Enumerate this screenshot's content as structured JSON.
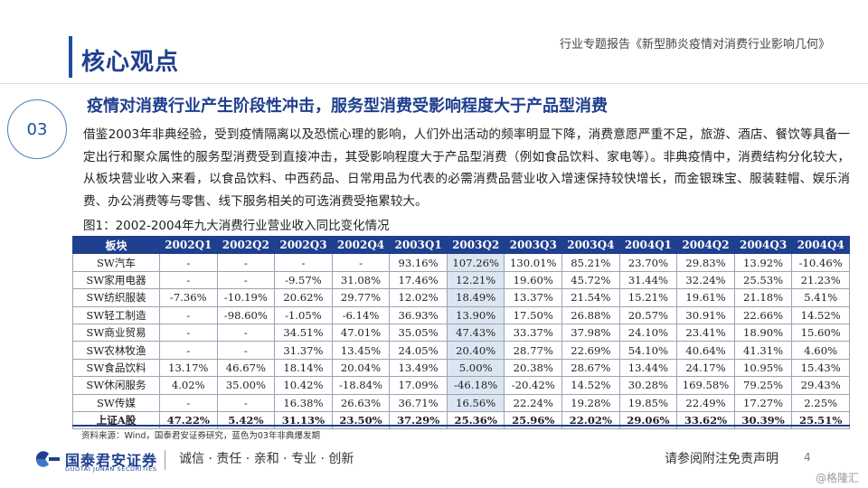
{
  "header": {
    "page_title": "核心观点",
    "report_title": "行业专题报告《新型肺炎疫情对消费行业影响几何》"
  },
  "section": {
    "number": "03",
    "heading": "疫情对消费行业产生阶段性冲击，服务型消费受影响程度大于产品型消费",
    "paragraph": "借鉴2003年非典经验，受到疫情隔离以及恐慌心理的影响，人们外出活动的频率明显下降，消费意愿严重不足，旅游、酒店、餐饮等具备一定出行和聚众属性的服务型消费受到直接冲击，其受影响程度大于产品型消费（例如食品饮料、家电等）。非典疫情中，消费结构分化较大，从板块营业收入来看，以食品饮料、中西药品、日常用品为代表的必需消费品营业收入增速保持较快增长，而金银珠宝、服装鞋帽、娱乐消费、办公消费等与零售、线下服务相关的可选消费受拖累较大。",
    "figure_caption": "图1：2002-2004年九大消费行业营业收入同比变化情况"
  },
  "table": {
    "headers": [
      "板块",
      "2002Q1",
      "2002Q2",
      "2002Q3",
      "2002Q4",
      "2003Q1",
      "2003Q2",
      "2003Q3",
      "2003Q4",
      "2004Q1",
      "2004Q2",
      "2004Q3",
      "2004Q4"
    ],
    "rows": [
      [
        "SW汽车",
        "-",
        "-",
        "-",
        "-",
        "93.16%",
        "107.26%",
        "130.01%",
        "85.21%",
        "23.70%",
        "29.83%",
        "13.92%",
        "-10.46%"
      ],
      [
        "SW家用电器",
        "-",
        "-",
        "-9.57%",
        "31.08%",
        "17.46%",
        "12.21%",
        "19.60%",
        "45.72%",
        "31.44%",
        "32.24%",
        "25.53%",
        "21.23%"
      ],
      [
        "SW纺织服装",
        "-7.36%",
        "-10.19%",
        "20.62%",
        "29.77%",
        "12.02%",
        "18.49%",
        "13.37%",
        "21.54%",
        "15.21%",
        "19.61%",
        "21.18%",
        "5.41%"
      ],
      [
        "SW轻工制造",
        "-",
        "-98.60%",
        "-1.05%",
        "-6.14%",
        "36.93%",
        "13.90%",
        "17.50%",
        "26.88%",
        "20.57%",
        "30.91%",
        "22.66%",
        "14.52%"
      ],
      [
        "SW商业贸易",
        "-",
        "-",
        "34.51%",
        "47.01%",
        "35.05%",
        "47.43%",
        "33.37%",
        "37.98%",
        "24.10%",
        "23.41%",
        "18.90%",
        "15.60%"
      ],
      [
        "SW农林牧渔",
        "-",
        "-",
        "31.37%",
        "13.45%",
        "24.05%",
        "20.40%",
        "28.77%",
        "22.69%",
        "54.10%",
        "40.64%",
        "41.31%",
        "4.60%"
      ],
      [
        "SW食品饮料",
        "13.17%",
        "46.67%",
        "18.14%",
        "20.04%",
        "13.49%",
        "5.00%",
        "20.38%",
        "28.67%",
        "13.44%",
        "24.17%",
        "10.95%",
        "15.43%"
      ],
      [
        "SW休闲服务",
        "4.02%",
        "35.00%",
        "10.42%",
        "-18.84%",
        "17.09%",
        "-46.18%",
        "-20.42%",
        "14.52%",
        "30.28%",
        "169.58%",
        "79.25%",
        "29.43%"
      ],
      [
        "SW传媒",
        "-",
        "-",
        "16.38%",
        "26.63%",
        "36.71%",
        "16.56%",
        "22.24%",
        "19.28%",
        "19.85%",
        "22.49%",
        "17.27%",
        "2.25%"
      ]
    ],
    "total_row": [
      "上证A股",
      "47.22%",
      "5.42%",
      "31.13%",
      "23.50%",
      "37.29%",
      "25.36%",
      "25.96%",
      "22.02%",
      "29.06%",
      "33.62%",
      "30.39%",
      "25.51%"
    ],
    "highlight_column": "2003Q2",
    "highlight_color": "#dce6f2",
    "header_color": "#1f3f8f"
  },
  "source_note": "资料来源：Wind，国泰君安证券研究，蓝色为03年非典爆发期",
  "footer": {
    "logo_name": "国泰君安证券",
    "logo_en": "GUOTAI JUNAN SECURITIES",
    "slogan": "诚信 · 责任 · 亲和 · 专业 · 创新",
    "disclaimer": "请参阅附注免责声明",
    "page_number": "4",
    "watermark": "@格隆汇"
  }
}
